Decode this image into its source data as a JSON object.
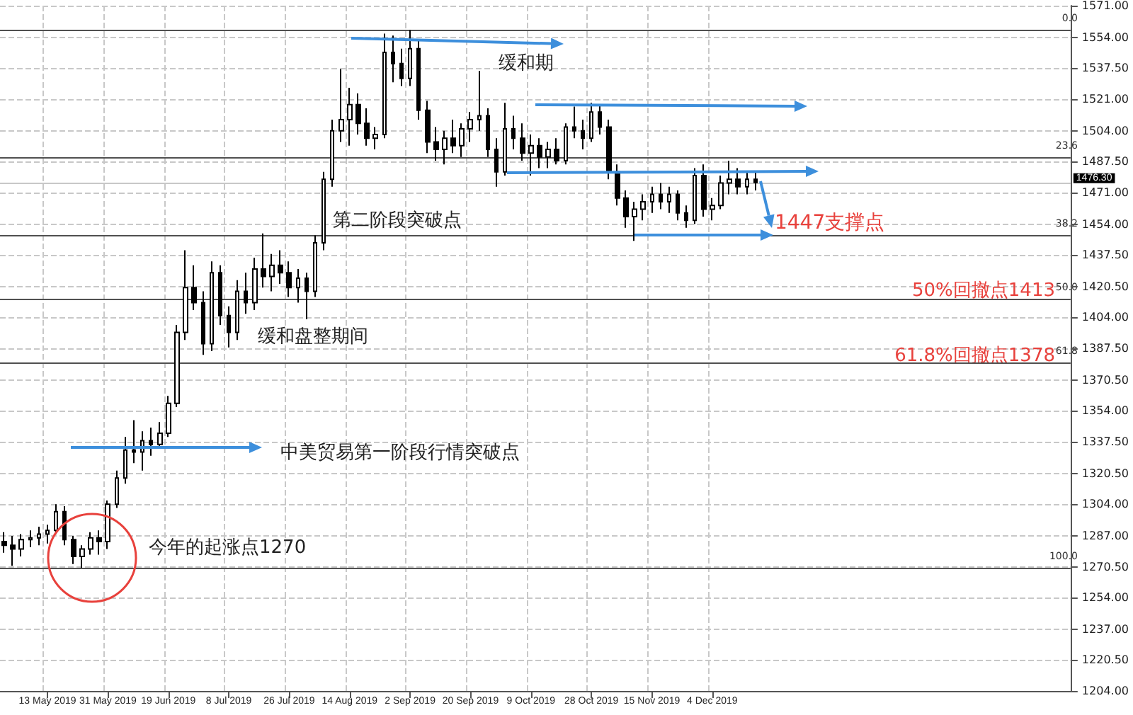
{
  "chart_data": {
    "type": "candlestick",
    "categories": [
      null,
      null,
      null,
      null,
      null,
      "13 May 2019",
      null,
      null,
      null,
      null,
      null,
      null,
      "31 May 2019",
      null,
      null,
      null,
      null,
      null,
      null,
      "19 Jun 2019",
      null,
      null,
      null,
      null,
      null,
      null,
      "8 Jul 2019",
      null,
      null,
      null,
      null,
      null,
      null,
      "26 Jul 2019",
      null,
      null,
      null,
      null,
      null,
      null,
      "14 Aug 2019",
      null,
      null,
      null,
      null,
      null,
      null,
      "2 Sep 2019",
      null,
      null,
      null,
      null,
      null,
      null,
      "20 Sep 2019",
      null,
      null,
      null,
      null,
      null,
      null,
      "9 Oct 2019",
      null,
      null,
      null,
      null,
      null,
      null,
      "28 Oct 2019",
      null,
      null,
      null,
      null,
      null,
      null,
      "15 Nov 2019",
      null,
      null,
      null,
      null,
      null,
      null,
      "4 Dec 2019",
      null,
      null,
      null,
      null,
      null,
      null,
      null,
      null,
      null,
      null,
      null,
      null,
      null,
      null,
      null,
      null,
      null,
      null,
      null,
      null,
      null,
      null,
      null,
      null,
      null,
      null,
      null,
      null,
      null,
      null,
      null,
      null,
      null,
      null,
      null,
      null,
      null,
      null,
      null,
      null,
      null
    ],
    "ohlc": [
      [
        1284,
        1289,
        1278,
        1282
      ],
      [
        1282,
        1287,
        1271,
        1280
      ],
      [
        1280,
        1288,
        1276,
        1285
      ],
      [
        1285,
        1290,
        1281,
        1286
      ],
      [
        1286,
        1292,
        1282,
        1288
      ],
      [
        1288,
        1293,
        1283,
        1290
      ],
      [
        1290,
        1304,
        1288,
        1300
      ],
      [
        1300,
        1303,
        1282,
        1285
      ],
      [
        1285,
        1287,
        1272,
        1276
      ],
      [
        1276,
        1282,
        1270,
        1280
      ],
      [
        1280,
        1289,
        1277,
        1286
      ],
      [
        1286,
        1290,
        1277,
        1284
      ],
      [
        1284,
        1306,
        1280,
        1304
      ],
      [
        1304,
        1322,
        1302,
        1318
      ],
      [
        1318,
        1340,
        1315,
        1333
      ],
      [
        1333,
        1349,
        1326,
        1332
      ],
      [
        1332,
        1343,
        1322,
        1338
      ],
      [
        1338,
        1345,
        1330,
        1336
      ],
      [
        1336,
        1348,
        1334,
        1342
      ],
      [
        1342,
        1362,
        1340,
        1358
      ],
      [
        1358,
        1400,
        1356,
        1396
      ],
      [
        1396,
        1440,
        1392,
        1420
      ],
      [
        1420,
        1432,
        1408,
        1412
      ],
      [
        1412,
        1418,
        1384,
        1390
      ],
      [
        1390,
        1434,
        1386,
        1428
      ],
      [
        1428,
        1432,
        1400,
        1405
      ],
      [
        1405,
        1410,
        1388,
        1396
      ],
      [
        1396,
        1424,
        1392,
        1418
      ],
      [
        1418,
        1428,
        1406,
        1412
      ],
      [
        1412,
        1436,
        1408,
        1430
      ],
      [
        1430,
        1449,
        1420,
        1426
      ],
      [
        1426,
        1438,
        1418,
        1432
      ],
      [
        1432,
        1440,
        1422,
        1428
      ],
      [
        1428,
        1434,
        1415,
        1420
      ],
      [
        1420,
        1430,
        1412,
        1425
      ],
      [
        1425,
        1428,
        1403,
        1418
      ],
      [
        1418,
        1448,
        1415,
        1444
      ],
      [
        1444,
        1482,
        1440,
        1478
      ],
      [
        1478,
        1510,
        1474,
        1504
      ],
      [
        1504,
        1537,
        1498,
        1510
      ],
      [
        1510,
        1527,
        1496,
        1518
      ],
      [
        1518,
        1524,
        1502,
        1508
      ],
      [
        1508,
        1516,
        1496,
        1500
      ],
      [
        1500,
        1506,
        1494,
        1502
      ],
      [
        1502,
        1556,
        1500,
        1546
      ],
      [
        1546,
        1555,
        1530,
        1540
      ],
      [
        1540,
        1548,
        1528,
        1532
      ],
      [
        1532,
        1558,
        1528,
        1548
      ],
      [
        1548,
        1552,
        1510,
        1515
      ],
      [
        1515,
        1520,
        1492,
        1498
      ],
      [
        1498,
        1506,
        1488,
        1494
      ],
      [
        1494,
        1504,
        1486,
        1500
      ],
      [
        1500,
        1510,
        1492,
        1496
      ],
      [
        1496,
        1508,
        1490,
        1505
      ],
      [
        1505,
        1514,
        1498,
        1510
      ],
      [
        1510,
        1536,
        1504,
        1512
      ],
      [
        1512,
        1516,
        1490,
        1494
      ],
      [
        1494,
        1500,
        1474,
        1482
      ],
      [
        1482,
        1519,
        1480,
        1505
      ],
      [
        1505,
        1512,
        1494,
        1500
      ],
      [
        1500,
        1508,
        1488,
        1492
      ],
      [
        1492,
        1502,
        1480,
        1496
      ],
      [
        1496,
        1500,
        1484,
        1490
      ],
      [
        1490,
        1498,
        1484,
        1494
      ],
      [
        1494,
        1500,
        1486,
        1488
      ],
      [
        1488,
        1508,
        1486,
        1506
      ],
      [
        1506,
        1517,
        1500,
        1504
      ],
      [
        1504,
        1510,
        1494,
        1500
      ],
      [
        1500,
        1519,
        1498,
        1514
      ],
      [
        1514,
        1518,
        1502,
        1506
      ],
      [
        1506,
        1510,
        1478,
        1482
      ],
      [
        1482,
        1486,
        1464,
        1468
      ],
      [
        1468,
        1472,
        1452,
        1458
      ],
      [
        1458,
        1466,
        1445,
        1462
      ],
      [
        1462,
        1470,
        1456,
        1466
      ],
      [
        1466,
        1474,
        1460,
        1470
      ],
      [
        1470,
        1476,
        1462,
        1466
      ],
      [
        1466,
        1474,
        1460,
        1470
      ],
      [
        1470,
        1472,
        1456,
        1460
      ],
      [
        1460,
        1464,
        1452,
        1456
      ],
      [
        1456,
        1484,
        1454,
        1480
      ],
      [
        1480,
        1486,
        1458,
        1462
      ],
      [
        1462,
        1468,
        1456,
        1464
      ],
      [
        1464,
        1480,
        1462,
        1476
      ],
      [
        1476,
        1488,
        1470,
        1478
      ],
      [
        1478,
        1484,
        1470,
        1474
      ],
      [
        1474,
        1482,
        1470,
        1478
      ],
      [
        1478,
        1482,
        1472,
        1476.3
      ],
      null,
      null,
      null,
      null,
      null,
      null,
      null,
      null,
      null,
      null,
      null,
      null,
      null,
      null,
      null,
      null,
      null,
      null,
      null,
      null,
      null,
      null,
      null,
      null,
      null,
      null,
      null,
      null,
      null,
      null,
      null,
      null,
      null,
      null,
      null,
      null
    ],
    "ylim": [
      1204,
      1571
    ],
    "yticks": [
      {
        "value": 1204,
        "label": "1204.00"
      },
      {
        "value": 1220.5,
        "label": "1220.50"
      },
      {
        "value": 1237,
        "label": "1237.00"
      },
      {
        "value": 1254,
        "label": "1254.00"
      },
      {
        "value": 1270.5,
        "label": "1270.50"
      },
      {
        "value": 1287,
        "label": "1287.00"
      },
      {
        "value": 1304,
        "label": "1304.00"
      },
      {
        "value": 1320.5,
        "label": "1320.50"
      },
      {
        "value": 1337.5,
        "label": "1337.50"
      },
      {
        "value": 1354,
        "label": "1354.00"
      },
      {
        "value": 1370.5,
        "label": "1370.50"
      },
      {
        "value": 1387.5,
        "label": "1387.50"
      },
      {
        "value": 1404,
        "label": "1404.00"
      },
      {
        "value": 1420.5,
        "label": "1420.50"
      },
      {
        "value": 1437.5,
        "label": "1437.50"
      },
      {
        "value": 1454,
        "label": "1454.00"
      },
      {
        "value": 1471,
        "label": "1471.00"
      },
      {
        "value": 1487.5,
        "label": "1487.50"
      },
      {
        "value": 1504,
        "label": "1504.00"
      },
      {
        "value": 1521,
        "label": "1521.00"
      },
      {
        "value": 1537.5,
        "label": "1537.50"
      },
      {
        "value": 1554,
        "label": "1554.00"
      },
      {
        "value": 1571,
        "label": "1571.00"
      }
    ],
    "grid": true,
    "ref_lines": [
      {
        "axis": "y",
        "value": 1558,
        "color": "#505050"
      },
      {
        "axis": "y",
        "value": 1490,
        "color": "#505050"
      },
      {
        "axis": "y",
        "value": 1448,
        "color": "#505050"
      },
      {
        "axis": "y",
        "value": 1414,
        "color": "#505050"
      },
      {
        "axis": "y",
        "value": 1380,
        "color": "#505050"
      },
      {
        "axis": "y",
        "value": 1270,
        "color": "#505050"
      },
      {
        "axis": "y",
        "value": 1476.3,
        "label": "1476.30",
        "color": "#c8c8c8"
      }
    ],
    "annotations": [
      "缓和期",
      "第二阶段突破点",
      "缓和盘整期间",
      "中美贸易第一阶段行情突破点",
      "今年的起涨点1270",
      {
        "text": "1447支撑点",
        "y": 1447
      },
      {
        "text": "50%回撤点1413",
        "y": 1413
      },
      {
        "text": "61.8%回撤点1378",
        "y": 1378
      },
      {
        "text": "0.0",
        "y": 1558
      },
      {
        "text": "23.6",
        "y": 1490
      },
      {
        "text": "38.2",
        "y": 1448
      },
      {
        "text": "50.0",
        "y": 1414
      },
      {
        "text": "61.8",
        "y": 1380
      },
      {
        "text": "100.0",
        "y": 1270
      }
    ]
  }
}
